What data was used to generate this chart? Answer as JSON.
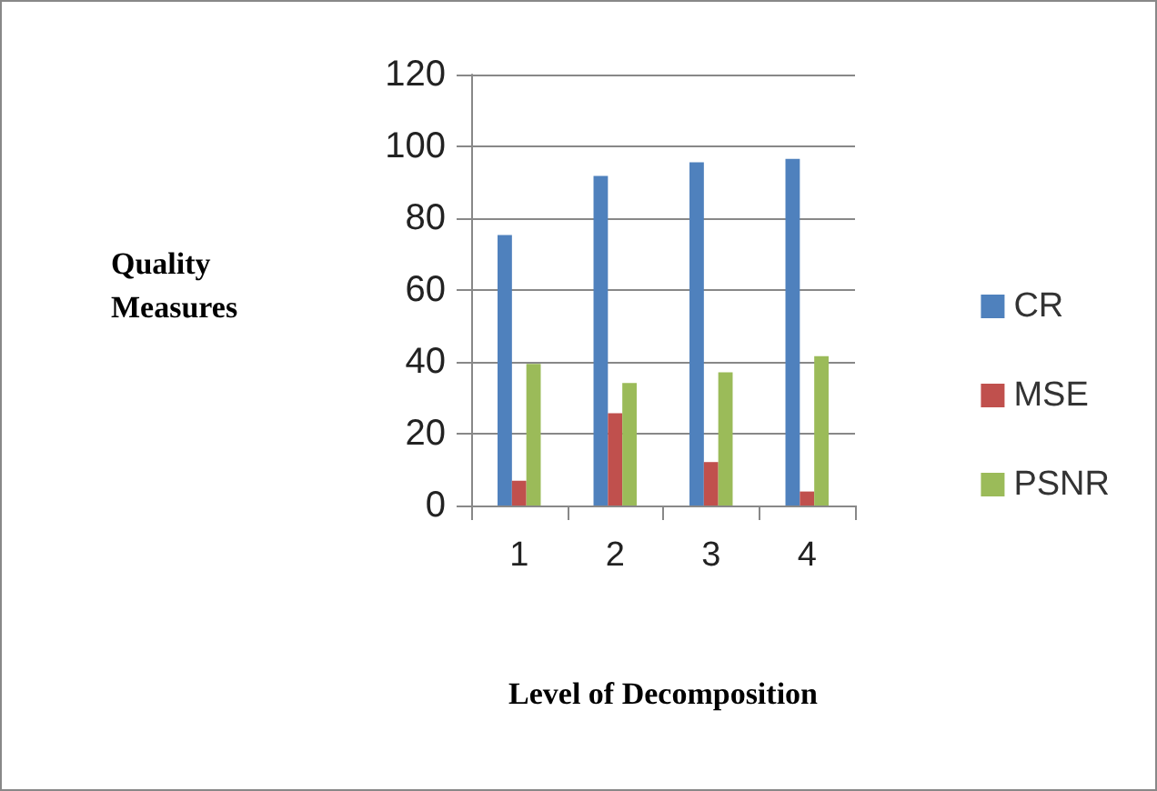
{
  "chart_data": {
    "type": "bar",
    "xlabel": "Level of Decomposition",
    "ylabel": "Quality\nMeasures",
    "categories": [
      "1",
      "2",
      "3",
      "4"
    ],
    "series": [
      {
        "name": "CR",
        "color": "#4f81bd",
        "values": [
          75.3,
          91.8,
          95.6,
          96.5
        ]
      },
      {
        "name": "MSE",
        "color": "#c0504d",
        "values": [
          6.9,
          25.7,
          12.1,
          3.9
        ]
      },
      {
        "name": "PSNR",
        "color": "#9bbb59",
        "values": [
          39.4,
          34.1,
          37.1,
          41.6
        ]
      }
    ],
    "ylim": [
      0,
      120
    ],
    "yticks": [
      0,
      20,
      40,
      60,
      80,
      100,
      120
    ],
    "grid": "y",
    "legend": "right"
  }
}
